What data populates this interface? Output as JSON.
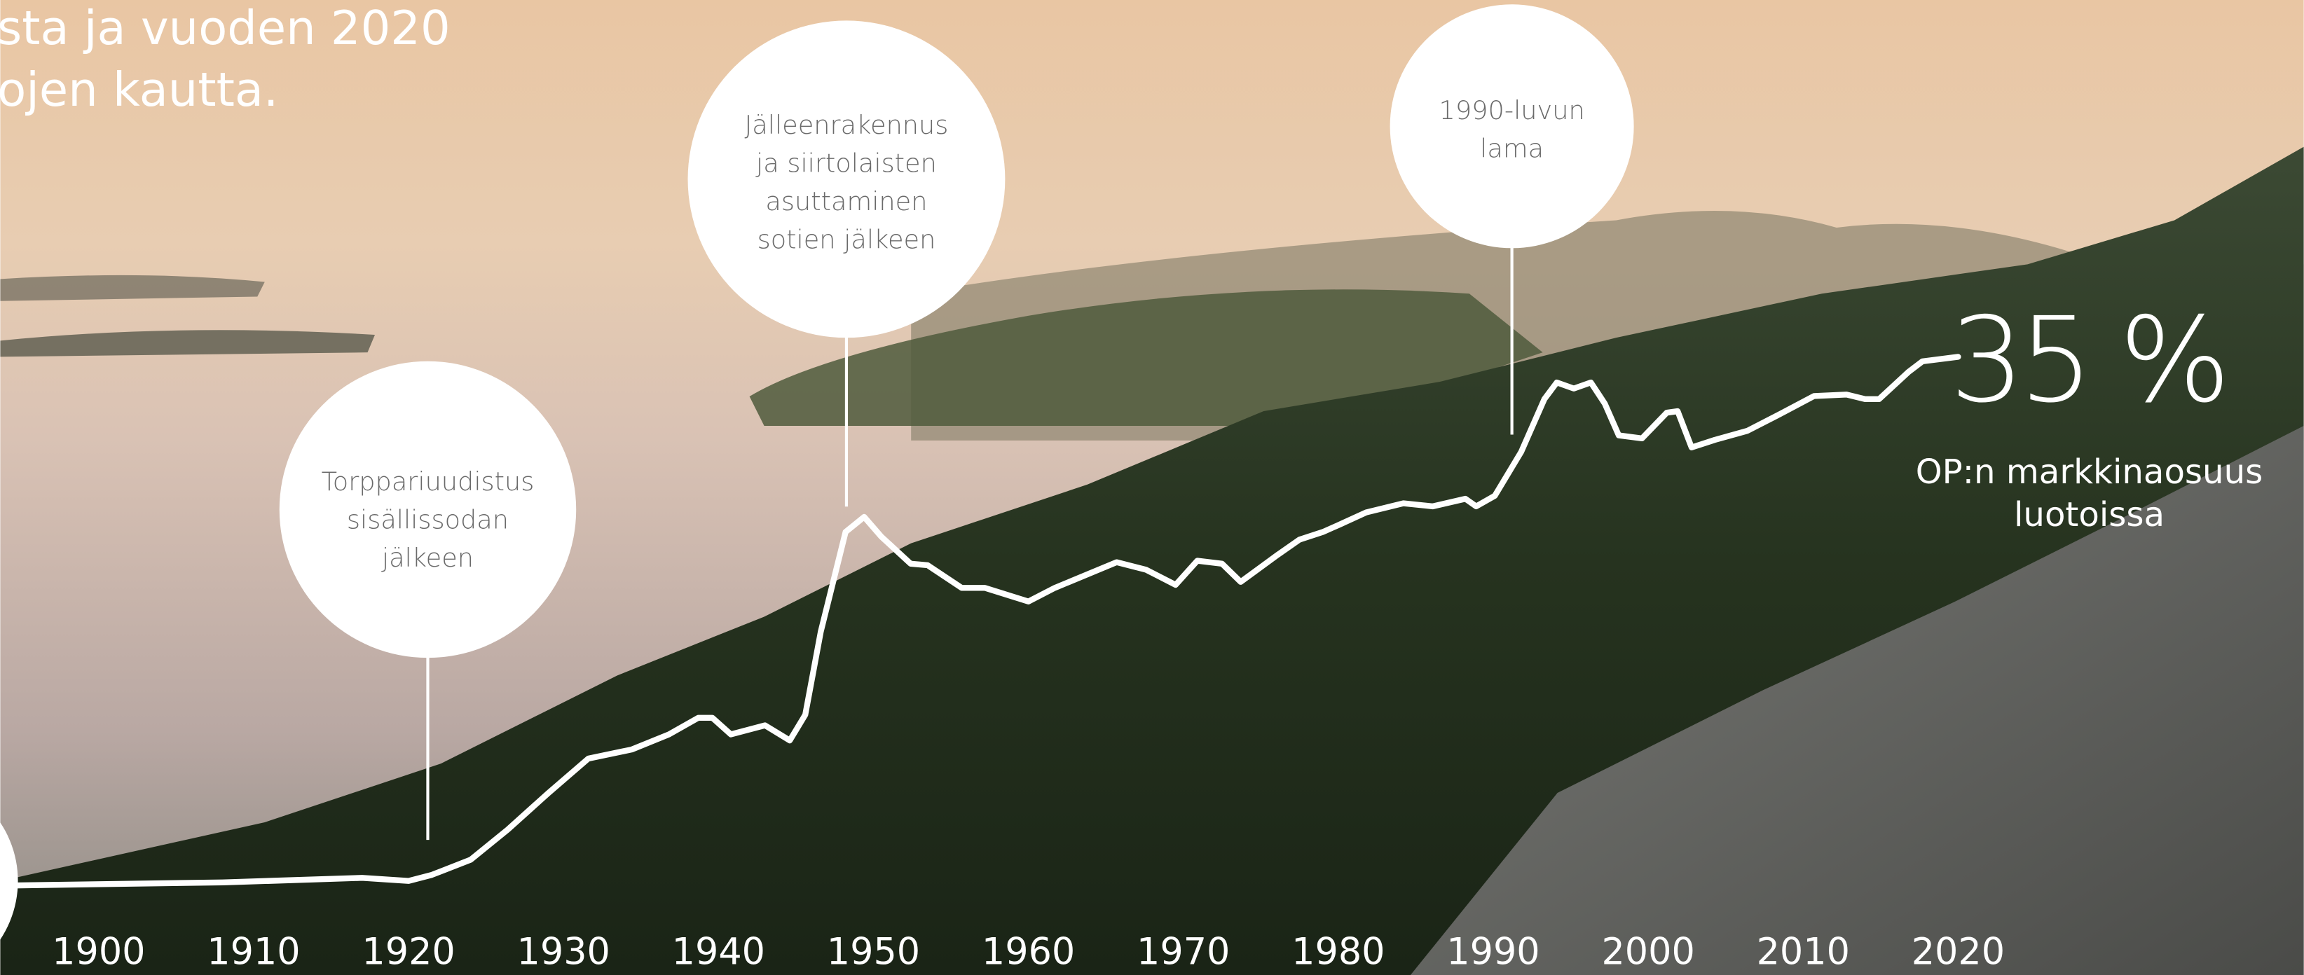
{
  "intro_lines": [
    "sta ja vuoden 2020",
    "ojen kautta."
  ],
  "chart_data": {
    "type": "line",
    "x": [
      1894.6,
      1908,
      1917,
      1920,
      1921.5,
      1924,
      1926.4,
      1929,
      1931.6,
      1934.4,
      1936.8,
      1938.7,
      1939.6,
      1940.8,
      1943,
      1944.6,
      1945.6,
      1946.6,
      1948.2,
      1949.4,
      1950.5,
      1952.4,
      1953.5,
      1955.7,
      1957.2,
      1960,
      1961.7,
      1965.7,
      1967.6,
      1969.5,
      1970.9,
      1972.5,
      1973.7,
      1976.1,
      1977.5,
      1979,
      1980.1,
      1981.8,
      1984.2,
      1986.1,
      1988.2,
      1988.9,
      1990.1,
      1991.8,
      1993.3,
      1994.1,
      1995.2,
      1996.3,
      1997.2,
      1998.1,
      1999.6,
      2001.2,
      2001.9,
      2002.8,
      2004.3,
      2006.4,
      2008.3,
      2010.7,
      2012.8,
      2014,
      2014.9,
      2016.8,
      2017.7,
      2020
    ],
    "values": [
      0,
      0.2,
      0.5,
      0.3,
      0.7,
      1.7,
      3.7,
      6.1,
      8.4,
      9.0,
      10.0,
      11.1,
      11.1,
      10.0,
      10.6,
      9.6,
      11.3,
      16.8,
      23.4,
      24.4,
      23.1,
      21.3,
      21.2,
      19.7,
      19.7,
      18.8,
      19.7,
      21.4,
      20.9,
      19.9,
      21.5,
      21.3,
      20.1,
      21.9,
      22.9,
      23.4,
      23.9,
      24.7,
      25.3,
      25.1,
      25.6,
      25.1,
      25.8,
      28.7,
      32.2,
      33.3,
      32.9,
      33.3,
      31.9,
      29.8,
      29.6,
      31.3,
      31.4,
      29.0,
      29.5,
      30.1,
      31.1,
      32.4,
      32.5,
      32.2,
      32.2,
      34.0,
      34.7,
      35
    ],
    "value_labels": [
      null,
      null,
      null,
      null,
      null,
      null,
      null,
      null,
      null,
      null,
      null,
      null,
      null,
      null,
      null,
      null,
      null,
      null,
      null,
      null,
      null,
      null,
      null,
      null,
      null,
      null,
      null,
      null,
      null,
      null,
      null,
      null,
      null,
      null,
      null,
      null,
      null,
      null,
      null,
      null,
      null,
      null,
      null,
      null,
      null,
      null,
      null,
      null,
      null,
      null,
      null,
      null,
      null,
      null,
      null,
      null,
      null,
      null,
      null,
      null,
      null,
      null,
      null,
      "35 %"
    ],
    "color": "#ffffff",
    "xlim": [
      1894,
      2040
    ],
    "xticks": [
      1900,
      1910,
      1920,
      1930,
      1940,
      1950,
      1960,
      1970,
      1980,
      1990,
      2000,
      2010,
      2020
    ],
    "ylim": [
      0,
      35
    ],
    "value_caption": [
      "OP:n markkinaosuus",
      "luotoissa"
    ],
    "annotations": [
      {
        "lines": [
          "Torppariuudistus",
          "sisällissodan",
          "jälkeen"
        ]
      },
      {
        "lines": [
          "Jälleenrakennus",
          "ja siirtolaisten",
          "asuttaminen",
          "sotien jälkeen"
        ]
      },
      {
        "lines": [
          "1990-luvun",
          "lama"
        ]
      }
    ]
  }
}
